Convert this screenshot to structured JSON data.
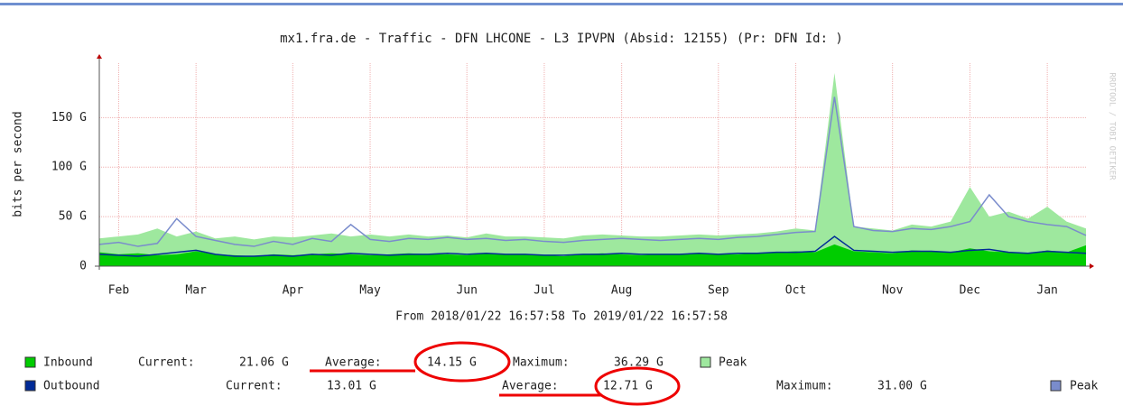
{
  "chart_data": {
    "type": "area",
    "title": "mx1.fra.de - Traffic - DFN LHCONE - L3 IPVPN (Absid: 12155) (Pr: DFN Id: )",
    "y_label": "bits per second",
    "x_label": "From 2018/01/22 16:57:58 To 2019/01/22 16:57:58",
    "watermark": "RRDTOOL / TOBI OETIKER",
    "categories": [
      null,
      "Feb",
      null,
      null,
      null,
      "Mar",
      null,
      null,
      null,
      null,
      "Apr",
      null,
      null,
      null,
      "May",
      null,
      null,
      null,
      null,
      "Jun",
      null,
      null,
      null,
      "Jul",
      null,
      null,
      null,
      "Aug",
      null,
      null,
      null,
      null,
      "Sep",
      null,
      null,
      null,
      "Oct",
      null,
      null,
      null,
      null,
      "Nov",
      null,
      null,
      null,
      "Dec",
      null,
      null,
      null,
      "Jan",
      null,
      null
    ],
    "ylim": [
      0,
      205
    ],
    "yticks": [
      {
        "value": 0,
        "label": "0"
      },
      {
        "value": 50,
        "label": "50 G"
      },
      {
        "value": 100,
        "label": "100 G"
      },
      {
        "value": 150,
        "label": "150 G"
      }
    ],
    "grid": true,
    "series": [
      {
        "name": "Peak",
        "color": "#9ee89e",
        "style": "area",
        "values": [
          28,
          30,
          32,
          38,
          30,
          35,
          28,
          30,
          27,
          30,
          29,
          31,
          33,
          30,
          32,
          30,
          32,
          30,
          31,
          29,
          33,
          30,
          30,
          29,
          28,
          31,
          32,
          31,
          30,
          30,
          31,
          32,
          31,
          32,
          33,
          35,
          38,
          36,
          195,
          40,
          38,
          36,
          42,
          40,
          45,
          80,
          50,
          55,
          48,
          60,
          45,
          38
        ]
      },
      {
        "name": "Inbound",
        "color": "#00cc00",
        "style": "area",
        "values": [
          14,
          12,
          13,
          11,
          12,
          15,
          12,
          11,
          10,
          12,
          11,
          12,
          13,
          12,
          11,
          12,
          13,
          12,
          12,
          11,
          13,
          12,
          12,
          11,
          10,
          12,
          13,
          12,
          11,
          12,
          12,
          13,
          12,
          12,
          13,
          14,
          15,
          14,
          22,
          15,
          14,
          13,
          16,
          15,
          14,
          18,
          15,
          14,
          13,
          16,
          14,
          21.06
        ]
      },
      {
        "name": "Peak",
        "color": "#7a8ccc",
        "style": "line",
        "values": [
          22,
          24,
          20,
          23,
          48,
          30,
          26,
          22,
          20,
          25,
          22,
          28,
          25,
          42,
          27,
          25,
          28,
          27,
          29,
          27,
          28,
          26,
          27,
          25,
          24,
          26,
          27,
          28,
          27,
          26,
          27,
          28,
          27,
          29,
          30,
          32,
          34,
          35,
          171,
          40,
          36,
          35,
          38,
          37,
          40,
          45,
          72,
          50,
          45,
          42,
          40,
          31
        ]
      },
      {
        "name": "Outbound",
        "color": "#002a97",
        "style": "line",
        "values": [
          12,
          11,
          10,
          12,
          14,
          16,
          12,
          10,
          10,
          11,
          10,
          12,
          11,
          13,
          12,
          11,
          12,
          12,
          13,
          12,
          13,
          12,
          12,
          11,
          11,
          12,
          12,
          13,
          12,
          12,
          12,
          13,
          12,
          13,
          13,
          14,
          14,
          15,
          30,
          16,
          15,
          14,
          15,
          15,
          14,
          16,
          17,
          14,
          13,
          15,
          14,
          13.01
        ]
      }
    ],
    "stats": [
      {
        "current_label": "Current:",
        "current": "21.06 G",
        "average_label": "Average:",
        "average": "14.15 G",
        "maximum_label": "Maximum:",
        "maximum": "36.29 G"
      },
      {
        "current_label": "Current:",
        "current": "13.01 G",
        "average_label": "Average:",
        "average": "12.71 G",
        "maximum_label": "Maximum:",
        "maximum": "31.00 G"
      }
    ]
  }
}
